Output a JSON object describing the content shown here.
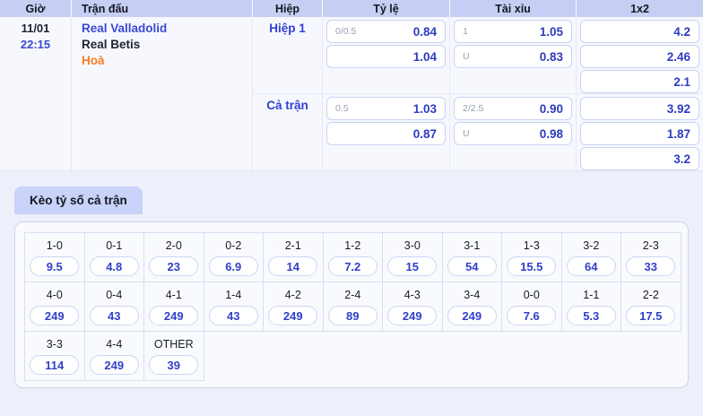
{
  "match_table": {
    "headers": {
      "time": "Giờ",
      "match": "Trận đấu",
      "half": "Hiệp",
      "handicap": "Tỷ lệ",
      "over_under": "Tài xỉu",
      "one_x_two": "1x2"
    },
    "match": {
      "date": "11/01",
      "kickoff": "22:15",
      "home_team": "Real Valladolid",
      "away_team": "Real Betis",
      "draw_label": "Hoà"
    },
    "sections": [
      {
        "label": "Hiệp 1",
        "handicap": [
          {
            "line": "0/0.5",
            "odds": "0.84"
          },
          {
            "line": "",
            "odds": "1.04"
          }
        ],
        "over_under": [
          {
            "line": "1",
            "odds": "1.05"
          },
          {
            "line": "U",
            "odds": "0.83"
          }
        ],
        "one_x_two": [
          {
            "odds": "4.2"
          },
          {
            "odds": "2.46"
          },
          {
            "odds": "2.1"
          }
        ]
      },
      {
        "label": "Cả trận",
        "handicap": [
          {
            "line": "0.5",
            "odds": "1.03"
          },
          {
            "line": "",
            "odds": "0.87"
          }
        ],
        "over_under": [
          {
            "line": "2/2.5",
            "odds": "0.90"
          },
          {
            "line": "U",
            "odds": "0.98"
          }
        ],
        "one_x_two": [
          {
            "odds": "3.92"
          },
          {
            "odds": "1.87"
          },
          {
            "odds": "3.2"
          }
        ]
      }
    ]
  },
  "correct_score": {
    "tab_label": "Kèo tỷ số cả trận",
    "rows": [
      [
        {
          "score": "1-0",
          "odds": "9.5"
        },
        {
          "score": "0-1",
          "odds": "4.8"
        },
        {
          "score": "2-0",
          "odds": "23"
        },
        {
          "score": "0-2",
          "odds": "6.9"
        },
        {
          "score": "2-1",
          "odds": "14"
        },
        {
          "score": "1-2",
          "odds": "7.2"
        },
        {
          "score": "3-0",
          "odds": "15"
        },
        {
          "score": "3-1",
          "odds": "54"
        },
        {
          "score": "1-3",
          "odds": "15.5"
        },
        {
          "score": "3-2",
          "odds": "64"
        },
        {
          "score": "2-3",
          "odds": "33"
        }
      ],
      [
        {
          "score": "4-0",
          "odds": "249"
        },
        {
          "score": "0-4",
          "odds": "43"
        },
        {
          "score": "4-1",
          "odds": "249"
        },
        {
          "score": "1-4",
          "odds": "43"
        },
        {
          "score": "4-2",
          "odds": "249"
        },
        {
          "score": "2-4",
          "odds": "89"
        },
        {
          "score": "4-3",
          "odds": "249"
        },
        {
          "score": "3-4",
          "odds": "249"
        },
        {
          "score": "0-0",
          "odds": "7.6"
        },
        {
          "score": "1-1",
          "odds": "5.3"
        },
        {
          "score": "2-2",
          "odds": "17.5"
        }
      ],
      [
        {
          "score": "3-3",
          "odds": "114"
        },
        {
          "score": "4-4",
          "odds": "249"
        },
        {
          "score": "OTHER",
          "odds": "39"
        }
      ]
    ]
  },
  "colors": {
    "header_bg": "#c6cef3",
    "tab_bg": "#c9d2f8",
    "link_blue": "#3a49d3",
    "odds_blue": "#2d3cbf",
    "draw_orange": "#fb7c22",
    "page_bg": "#edf0fa"
  }
}
